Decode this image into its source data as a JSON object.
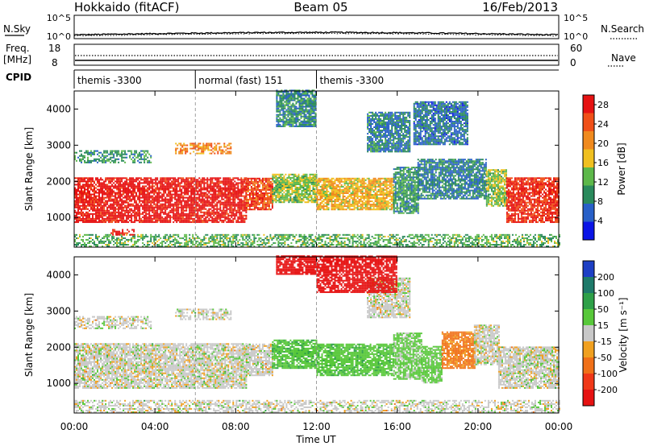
{
  "header": {
    "station": "Hokkaido (fitACF)",
    "beam": "Beam 05",
    "date": "16/Feb/2013"
  },
  "top_panels": {
    "nsky_label": "N.Sky",
    "nsky_ticks": [
      "10^5",
      "10^0"
    ],
    "nsearch_label": "N.Search",
    "nsearch_ticks": [
      "10^5",
      "10^0"
    ],
    "freq_label": "Freq.",
    "freq_unit": "[MHz]",
    "freq_ticks": [
      "18",
      "8"
    ],
    "nave_label": "Nave",
    "nave_ticks": [
      "60",
      "0"
    ],
    "cpid_label": "CPID",
    "cpid_segments": [
      {
        "label": "themis -3300",
        "start_h": 0,
        "end_h": 6
      },
      {
        "label": "normal (fast) 151",
        "start_h": 6,
        "end_h": 12
      },
      {
        "label": "themis -3300",
        "start_h": 12,
        "end_h": 24
      }
    ]
  },
  "chart_data": [
    {
      "type": "heatmap",
      "title": "",
      "xlabel": "Time UT",
      "ylabel": "Slant Range [km]",
      "x_ticks": [
        "00:00",
        "04:00",
        "08:00",
        "12:00",
        "16:00",
        "20:00",
        "00:00"
      ],
      "xlim_hours": [
        0,
        24
      ],
      "y_ticks": [
        1000,
        2000,
        3000,
        4000
      ],
      "ylim_km": [
        180,
        4500
      ],
      "colorbar": {
        "label": "Power [dB]",
        "ticks": [
          4,
          8,
          12,
          16,
          20,
          24,
          28
        ],
        "range": [
          0,
          30
        ],
        "colors": [
          "#0a14e6",
          "#2860c8",
          "#2a8a5c",
          "#5db84a",
          "#f0c020",
          "#f08a1e",
          "#f05018",
          "#e61212"
        ]
      },
      "regions": [
        {
          "t0": 0.0,
          "t1": 8.5,
          "r0": 850,
          "r1": 2100,
          "value": 29
        },
        {
          "t0": 8.5,
          "t1": 9.8,
          "r0": 1200,
          "r1": 2100,
          "value": 25
        },
        {
          "t0": 9.8,
          "t1": 12.0,
          "r0": 1400,
          "r1": 2200,
          "value": 14
        },
        {
          "t0": 12.0,
          "t1": 15.8,
          "r0": 1200,
          "r1": 2100,
          "value": 18
        },
        {
          "t0": 15.8,
          "t1": 17.0,
          "r0": 1100,
          "r1": 2400,
          "value": 10
        },
        {
          "t0": 17.0,
          "t1": 20.4,
          "r0": 1500,
          "r1": 2600,
          "value": 8
        },
        {
          "t0": 20.4,
          "t1": 21.4,
          "r0": 1300,
          "r1": 2300,
          "value": 14
        },
        {
          "t0": 21.4,
          "t1": 24.0,
          "r0": 850,
          "r1": 2100,
          "value": 27
        },
        {
          "t0": 0.0,
          "t1": 3.8,
          "r0": 2500,
          "r1": 2850,
          "value": 10
        },
        {
          "t0": 5.0,
          "t1": 7.8,
          "r0": 2750,
          "r1": 3050,
          "value": 21
        },
        {
          "t0": 10.0,
          "t1": 12.0,
          "r0": 3500,
          "r1": 4500,
          "value": 9
        },
        {
          "t0": 14.5,
          "t1": 16.6,
          "r0": 2800,
          "r1": 3900,
          "value": 8
        },
        {
          "t0": 16.8,
          "t1": 19.5,
          "r0": 3000,
          "r1": 4200,
          "value": 7
        },
        {
          "t0": 0.0,
          "t1": 24.0,
          "r0": 180,
          "r1": 500,
          "value": 12
        },
        {
          "t0": 1.8,
          "t1": 3.0,
          "r0": 500,
          "r1": 650,
          "value": 28
        }
      ]
    },
    {
      "type": "heatmap",
      "title": "",
      "xlabel": "Time UT",
      "ylabel": "Slant Range [km]",
      "x_ticks": [
        "00:00",
        "04:00",
        "08:00",
        "12:00",
        "16:00",
        "20:00",
        "00:00"
      ],
      "xlim_hours": [
        0,
        24
      ],
      "y_ticks": [
        1000,
        2000,
        3000,
        4000
      ],
      "ylim_km": [
        180,
        4500
      ],
      "colorbar": {
        "label": "Velocity [m s⁻¹]",
        "ticks": [
          200,
          100,
          50,
          15,
          -15,
          -50,
          -100,
          -200
        ],
        "colors": [
          "#1d3fc4",
          "#1e7a6a",
          "#2ea048",
          "#58c83a",
          "#c8c8c8",
          "#f0a020",
          "#f07018",
          "#f03818",
          "#e61212"
        ]
      },
      "regions": [
        {
          "t0": 0.0,
          "t1": 8.5,
          "r0": 850,
          "r1": 2100,
          "value": 0
        },
        {
          "t0": 8.5,
          "t1": 9.8,
          "r0": 1200,
          "r1": 2100,
          "value": 0
        },
        {
          "t0": 9.8,
          "t1": 12.0,
          "r0": 1400,
          "r1": 2200,
          "value": 40
        },
        {
          "t0": 12.0,
          "t1": 15.8,
          "r0": 1200,
          "r1": 2100,
          "value": 35
        },
        {
          "t0": 15.8,
          "t1": 17.2,
          "r0": 1100,
          "r1": 2400,
          "value": 25
        },
        {
          "t0": 17.2,
          "t1": 18.2,
          "r0": 1000,
          "r1": 2000,
          "value": 30
        },
        {
          "t0": 18.2,
          "t1": 19.8,
          "r0": 1400,
          "r1": 2400,
          "value": -60
        },
        {
          "t0": 19.8,
          "t1": 21.0,
          "r0": 1500,
          "r1": 2600,
          "value": 0
        },
        {
          "t0": 21.0,
          "t1": 24.0,
          "r0": 850,
          "r1": 2000,
          "value": 0
        },
        {
          "t0": 0.0,
          "t1": 3.8,
          "r0": 2500,
          "r1": 2850,
          "value": 0
        },
        {
          "t0": 5.0,
          "t1": 7.8,
          "r0": 2750,
          "r1": 3050,
          "value": 0
        },
        {
          "t0": 14.5,
          "t1": 16.6,
          "r0": 2800,
          "r1": 3900,
          "value": 0
        },
        {
          "t0": 10.0,
          "t1": 12.0,
          "r0": 4000,
          "r1": 4500,
          "value": -250
        },
        {
          "t0": 12.0,
          "t1": 16.0,
          "r0": 3500,
          "r1": 4500,
          "value": -250
        },
        {
          "t0": 0.0,
          "t1": 24.0,
          "r0": 180,
          "r1": 500,
          "value": 0
        }
      ]
    }
  ]
}
